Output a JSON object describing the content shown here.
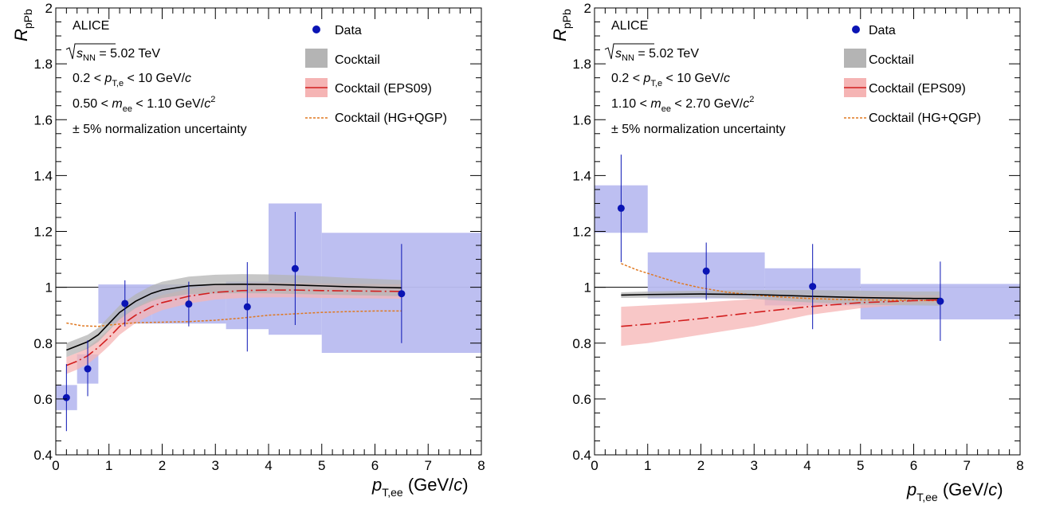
{
  "colors": {
    "data": "#0a14b4",
    "syst_box": "#b9bcf0",
    "cocktail_band": "#b4b4b4",
    "cocktail_line": "#000000",
    "eps09_band": "#f5b4b4",
    "eps09_line": "#d21e1e",
    "hgqgp_line": "#e07820"
  },
  "legend": {
    "data": "Data",
    "cocktail": "Cocktail",
    "eps09": "Cocktail (EPS09)",
    "hgqgp": "Cocktail (HG+QGP)"
  },
  "axis": {
    "x_title_main": "p",
    "x_title_sub": "T,ee",
    "x_title_unit": " (GeV/c)",
    "y_title_main": "R",
    "y_title_sub": "pPb"
  },
  "chart_data": [
    {
      "type": "scatter",
      "panel": "left",
      "info": {
        "experiment": "ALICE",
        "energy": "√sNN = 5.02 TeV",
        "pt_cut": "0.2 < pT,e < 10 GeV/c",
        "mass_range": "0.50 < mee < 1.10 GeV/c2",
        "norm": "± 5% normalization uncertainty"
      },
      "xlim": [
        0,
        8
      ],
      "ylim": [
        0.4,
        2
      ],
      "x_ticks": [
        0,
        1,
        2,
        3,
        4,
        5,
        6,
        7,
        8
      ],
      "y_ticks": [
        0.4,
        0.6,
        0.8,
        1,
        1.2,
        1.4,
        1.6,
        1.8,
        2
      ],
      "reference_line": 1,
      "data": {
        "x": [
          0.2,
          0.6,
          1.3,
          2.5,
          3.6,
          4.5,
          6.5
        ],
        "y": [
          0.605,
          0.708,
          0.942,
          0.94,
          0.93,
          1.067,
          0.977
        ],
        "stat_low": [
          0.485,
          0.61,
          0.86,
          0.86,
          0.77,
          0.865,
          0.8
        ],
        "stat_high": [
          0.725,
          0.81,
          1.025,
          1.02,
          1.09,
          1.27,
          1.155
        ],
        "syst_x_low": [
          0.0,
          0.4,
          0.8,
          1.8,
          3.2,
          4.0,
          5.0
        ],
        "syst_x_high": [
          0.4,
          0.8,
          1.8,
          3.2,
          4.0,
          5.0,
          8.0
        ],
        "syst_low": [
          0.56,
          0.655,
          0.87,
          0.87,
          0.85,
          0.83,
          0.765
        ],
        "syst_high": [
          0.65,
          0.76,
          1.01,
          1.01,
          1.02,
          1.3,
          1.195
        ]
      },
      "cocktail": {
        "x": [
          0.2,
          0.4,
          0.6,
          0.8,
          1.0,
          1.2,
          1.5,
          1.8,
          2.0,
          2.5,
          3.0,
          3.5,
          4.0,
          4.5,
          5.0,
          5.5,
          6.0,
          6.5
        ],
        "y": [
          0.775,
          0.79,
          0.805,
          0.83,
          0.87,
          0.91,
          0.95,
          0.978,
          0.99,
          1.005,
          1.01,
          1.011,
          1.01,
          1.008,
          1.005,
          1.002,
          1.0,
          0.998
        ],
        "low": [
          0.75,
          0.765,
          0.78,
          0.805,
          0.845,
          0.885,
          0.925,
          0.95,
          0.962,
          0.975,
          0.978,
          0.979,
          0.978,
          0.976,
          0.974,
          0.972,
          0.97,
          0.968
        ],
        "high": [
          0.8,
          0.815,
          0.83,
          0.855,
          0.895,
          0.935,
          0.975,
          1.006,
          1.02,
          1.038,
          1.045,
          1.047,
          1.046,
          1.043,
          1.039,
          1.034,
          1.03,
          1.026
        ]
      },
      "eps09": {
        "x": [
          0.2,
          0.4,
          0.6,
          0.8,
          1.0,
          1.2,
          1.5,
          1.8,
          2.0,
          2.5,
          3.0,
          3.5,
          4.0,
          4.5,
          5.0,
          5.5,
          6.0,
          6.5
        ],
        "y": [
          0.72,
          0.735,
          0.755,
          0.785,
          0.82,
          0.86,
          0.9,
          0.93,
          0.945,
          0.968,
          0.982,
          0.988,
          0.99,
          0.99,
          0.988,
          0.987,
          0.986,
          0.985
        ],
        "low": [
          0.69,
          0.705,
          0.725,
          0.755,
          0.79,
          0.83,
          0.872,
          0.902,
          0.918,
          0.942,
          0.956,
          0.962,
          0.964,
          0.964,
          0.962,
          0.961,
          0.96,
          0.959
        ],
        "high": [
          0.75,
          0.765,
          0.785,
          0.815,
          0.85,
          0.89,
          0.928,
          0.958,
          0.972,
          0.994,
          1.008,
          1.014,
          1.016,
          1.016,
          1.014,
          1.013,
          1.012,
          1.011
        ]
      },
      "hgqgp": {
        "x": [
          0.2,
          0.5,
          0.8,
          1.0,
          1.5,
          2.0,
          2.5,
          3.0,
          3.5,
          4.0,
          4.5,
          5.0,
          5.5,
          6.0,
          6.5
        ],
        "y": [
          0.872,
          0.862,
          0.86,
          0.865,
          0.873,
          0.875,
          0.877,
          0.882,
          0.89,
          0.9,
          0.905,
          0.91,
          0.913,
          0.915,
          0.915
        ]
      }
    },
    {
      "type": "scatter",
      "panel": "right",
      "info": {
        "experiment": "ALICE",
        "energy": "√sNN = 5.02 TeV",
        "pt_cut": "0.2 < pT,e < 10 GeV/c",
        "mass_range": "1.10 < mee < 2.70 GeV/c2",
        "norm": "± 5% normalization uncertainty"
      },
      "xlim": [
        0,
        8
      ],
      "ylim": [
        0.4,
        2
      ],
      "x_ticks": [
        0,
        1,
        2,
        3,
        4,
        5,
        6,
        7,
        8
      ],
      "y_ticks": [
        0.4,
        0.6,
        0.8,
        1,
        1.2,
        1.4,
        1.6,
        1.8,
        2
      ],
      "reference_line": 1,
      "data": {
        "x": [
          0.5,
          2.1,
          4.1,
          6.5
        ],
        "y": [
          1.283,
          1.058,
          1.003,
          0.95
        ],
        "stat_low": [
          1.09,
          0.955,
          0.85,
          0.808
        ],
        "stat_high": [
          1.475,
          1.16,
          1.155,
          1.092
        ],
        "syst_x_low": [
          0.0,
          1.0,
          3.2,
          5.0
        ],
        "syst_x_high": [
          1.0,
          3.2,
          5.0,
          8.0
        ],
        "syst_low": [
          1.195,
          0.96,
          0.935,
          0.885
        ],
        "syst_high": [
          1.365,
          1.125,
          1.068,
          1.012
        ]
      },
      "cocktail": {
        "x": [
          0.5,
          1.0,
          2.0,
          3.0,
          4.0,
          5.0,
          6.0,
          6.5
        ],
        "y": [
          0.972,
          0.974,
          0.976,
          0.974,
          0.968,
          0.963,
          0.96,
          0.96
        ],
        "low": [
          0.962,
          0.963,
          0.964,
          0.958,
          0.946,
          0.938,
          0.935,
          0.934
        ],
        "high": [
          0.982,
          0.985,
          0.988,
          0.99,
          0.99,
          0.988,
          0.985,
          0.985
        ]
      },
      "eps09": {
        "x": [
          0.5,
          1.0,
          2.0,
          3.0,
          4.0,
          5.0,
          6.0,
          6.5
        ],
        "y": [
          0.86,
          0.868,
          0.888,
          0.91,
          0.93,
          0.945,
          0.952,
          0.955
        ],
        "low": [
          0.79,
          0.8,
          0.83,
          0.86,
          0.9,
          0.925,
          0.94,
          0.945
        ],
        "high": [
          0.93,
          0.935,
          0.945,
          0.958,
          0.965,
          0.97,
          0.972,
          0.972
        ]
      },
      "hgqgp": {
        "x": [
          0.5,
          0.8,
          1.0,
          1.3,
          1.6,
          2.0,
          2.5,
          3.0,
          3.5,
          4.0,
          4.5,
          5.0,
          5.5,
          6.0,
          6.5
        ],
        "y": [
          1.085,
          1.062,
          1.05,
          1.032,
          1.015,
          0.998,
          0.982,
          0.972,
          0.965,
          0.96,
          0.957,
          0.955,
          0.954,
          0.953,
          0.952
        ]
      }
    }
  ]
}
